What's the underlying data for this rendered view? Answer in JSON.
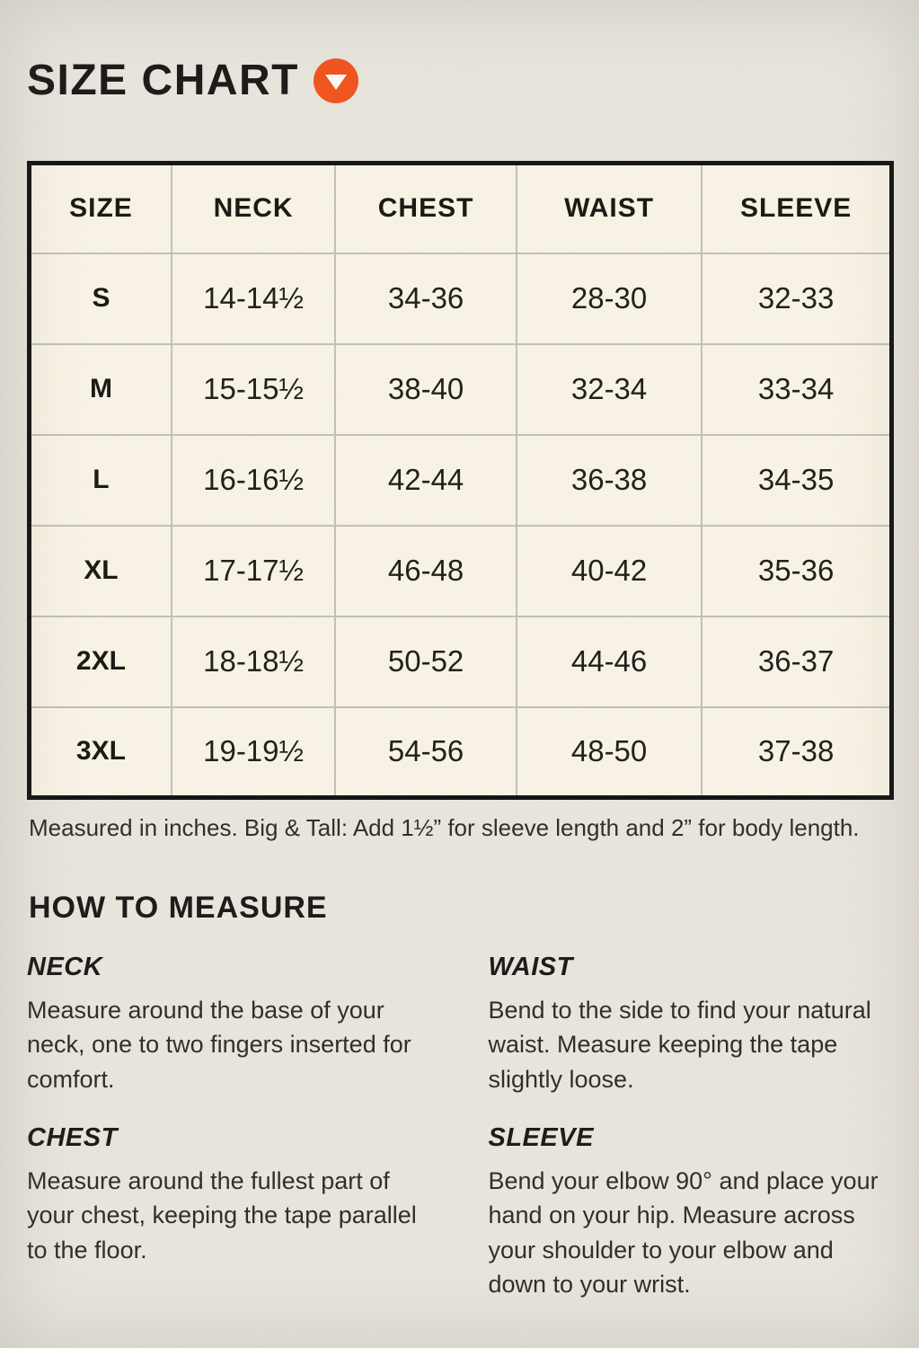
{
  "page": {
    "title": "SIZE CHART"
  },
  "colors": {
    "accent_orange": "#f2521b",
    "background": "#e9e6dd",
    "table_cell": "#f9f4e6",
    "table_border": "#101010",
    "grid_line": "#c1c1b8",
    "ink": "#181715"
  },
  "size_table": {
    "columns": [
      "SIZE",
      "NECK",
      "CHEST",
      "WAIST",
      "SLEEVE"
    ],
    "rows": [
      {
        "size": "S",
        "neck": "14-14½",
        "chest": "34-36",
        "waist": "28-30",
        "sleeve": "32-33"
      },
      {
        "size": "M",
        "neck": "15-15½",
        "chest": "38-40",
        "waist": "32-34",
        "sleeve": "33-34"
      },
      {
        "size": "L",
        "neck": "16-16½",
        "chest": "42-44",
        "waist": "36-38",
        "sleeve": "34-35"
      },
      {
        "size": "XL",
        "neck": "17-17½",
        "chest": "46-48",
        "waist": "40-42",
        "sleeve": "35-36"
      },
      {
        "size": "2XL",
        "neck": "18-18½",
        "chest": "50-52",
        "waist": "44-46",
        "sleeve": "36-37"
      },
      {
        "size": "3XL",
        "neck": "19-19½",
        "chest": "54-56",
        "waist": "48-50",
        "sleeve": "37-38"
      }
    ],
    "note": "Measured in inches. Big & Tall: Add 1½” for sleeve length and 2” for body length."
  },
  "how_to_measure": {
    "title": "HOW TO MEASURE",
    "columns": [
      {
        "sections": [
          {
            "label": "NECK",
            "text": "Measure around the base of your neck, one to two fingers inserted for comfort."
          },
          {
            "label": "CHEST",
            "text": "Measure around the fullest part of your chest, keeping the tape parallel to the floor."
          }
        ]
      },
      {
        "sections": [
          {
            "label": "WAIST",
            "text": "Bend to the side to find your natural waist. Measure keeping the tape slightly loose."
          },
          {
            "label": "SLEEVE",
            "text": "Bend your elbow 90° and place your hand on your hip. Measure across your shoulder to your elbow and down to your wrist."
          }
        ]
      }
    ]
  }
}
